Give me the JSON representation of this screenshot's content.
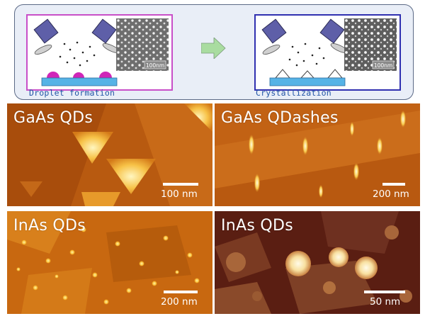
{
  "schematic": {
    "steps": [
      {
        "caption": "Droplet formation",
        "sem_scale": "100nm"
      },
      {
        "caption": "Crystallization",
        "sem_scale": "100nm"
      }
    ],
    "colors": {
      "droplet_border": "#c84fc8",
      "crystal_border": "#3030b0",
      "arrow": "#a9dca0",
      "substrate": "#56b3e6",
      "droplet": "#d026b8"
    }
  },
  "panels": [
    {
      "label": "GaAs QDs",
      "scale": "100 nm"
    },
    {
      "label": "GaAs QDashes",
      "scale": "200 nm"
    },
    {
      "label": "InAs QDs",
      "scale": "200 nm"
    },
    {
      "label": "InAs QDs",
      "scale": "50 nm"
    }
  ]
}
